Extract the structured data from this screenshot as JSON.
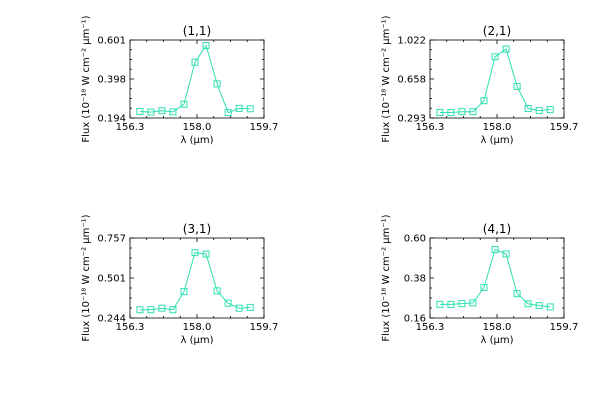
{
  "figure": {
    "background": "#ffffff",
    "series_color": "#2fe0b0"
  },
  "chart_data": [
    {
      "type": "line",
      "title": "(1,1)",
      "xlabel": "λ (μm)",
      "ylabel": "Flux (10⁻¹⁸ W cm⁻² μm⁻¹)",
      "xlim": [
        156.3,
        159.7
      ],
      "ylim": [
        0.194,
        0.601
      ],
      "xticks": [
        "156.3",
        "158.0",
        "159.7"
      ],
      "yticks": [
        "0.194",
        "0.398",
        "0.601"
      ],
      "marker": "square",
      "x": [
        156.55,
        156.83,
        157.11,
        157.39,
        157.67,
        157.95,
        158.23,
        158.51,
        158.79,
        159.07,
        159.35
      ],
      "y": [
        0.228,
        0.225,
        0.232,
        0.226,
        0.266,
        0.485,
        0.572,
        0.372,
        0.222,
        0.244,
        0.242
      ]
    },
    {
      "type": "line",
      "title": "(2,1)",
      "xlabel": "λ (μm)",
      "ylabel": "Flux (10⁻¹⁸ W cm⁻² μm⁻¹)",
      "xlim": [
        156.3,
        159.7
      ],
      "ylim": [
        0.293,
        1.022
      ],
      "xticks": [
        "156.3",
        "158.0",
        "159.7"
      ],
      "yticks": [
        "0.293",
        "0.658",
        "1.022"
      ],
      "marker": "square",
      "x": [
        156.55,
        156.83,
        157.11,
        157.39,
        157.67,
        157.95,
        158.23,
        158.51,
        158.79,
        159.07,
        159.35
      ],
      "y": [
        0.344,
        0.344,
        0.352,
        0.352,
        0.455,
        0.865,
        0.937,
        0.588,
        0.382,
        0.362,
        0.372
      ]
    },
    {
      "type": "line",
      "title": "(3,1)",
      "xlabel": "λ (μm)",
      "ylabel": "Flux (10⁻¹⁸ W cm⁻² μm⁻¹)",
      "xlim": [
        156.3,
        159.7
      ],
      "ylim": [
        0.244,
        0.757
      ],
      "xticks": [
        "156.3",
        "158.0",
        "159.7"
      ],
      "yticks": [
        "0.244",
        "0.501",
        "0.757"
      ],
      "marker": "square",
      "x": [
        156.55,
        156.83,
        157.11,
        157.39,
        157.67,
        157.95,
        158.23,
        158.51,
        158.79,
        159.07,
        159.35
      ],
      "y": [
        0.297,
        0.297,
        0.307,
        0.297,
        0.413,
        0.663,
        0.654,
        0.418,
        0.339,
        0.307,
        0.312
      ]
    },
    {
      "type": "line",
      "title": "(4,1)",
      "xlabel": "λ (μm)",
      "ylabel": "Flux (10⁻¹⁸ W cm⁻² μm⁻¹)",
      "xlim": [
        156.3,
        159.7
      ],
      "ylim": [
        0.16,
        0.6
      ],
      "xticks": [
        "156.3",
        "158.0",
        "159.7"
      ],
      "yticks": [
        "0.16",
        "0.38",
        "0.60"
      ],
      "marker": "square",
      "x": [
        156.55,
        156.83,
        157.11,
        157.39,
        157.67,
        157.95,
        158.23,
        158.51,
        158.79,
        159.07,
        159.35
      ],
      "y": [
        0.235,
        0.235,
        0.239,
        0.243,
        0.328,
        0.537,
        0.512,
        0.294,
        0.238,
        0.228,
        0.221
      ]
    }
  ]
}
